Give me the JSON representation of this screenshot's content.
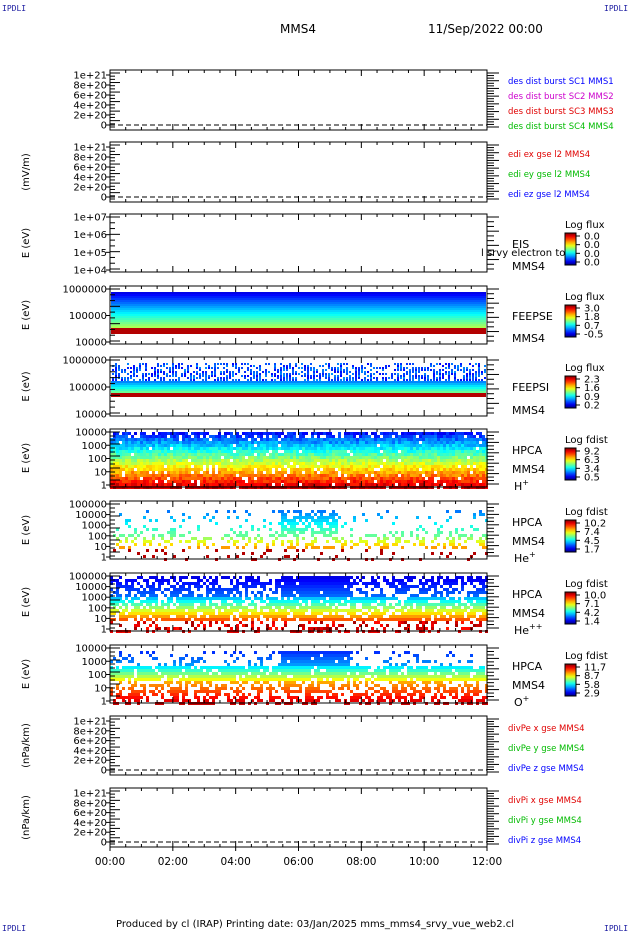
{
  "corners": {
    "top_left": "IPDLI",
    "top_right": "IPDLI",
    "bottom_left": "IPDLI",
    "bottom_right": "IPDLI"
  },
  "header": {
    "spacecraft": "MMS4",
    "date": "11/Sep/2022 00:00"
  },
  "footer": {
    "text": "Produced by cl (IRAP)   Printing date: 03/Jan/2025   mms_mms4_srvy_vue_web2.cl"
  },
  "x_axis": {
    "ticks": [
      "00:00",
      "02:00",
      "04:00",
      "06:00",
      "08:00",
      "10:00",
      "12:00"
    ]
  },
  "colors": {
    "des1": "#0000ff",
    "des2": "#cc00cc",
    "des3": "#e00000",
    "des4": "#00bb00"
  },
  "chart_data": [
    {
      "type": "line",
      "panel": "des-dist",
      "ylabel": "",
      "ytick_labels": [
        "1e+21",
        "8e+20",
        "6e+20",
        "4e+20",
        "2e+20",
        "0"
      ],
      "legend": [
        {
          "name": "des dist burst SC1 MMS1",
          "color": "#0000ff"
        },
        {
          "name": "des dist burst SC2 MMS2",
          "color": "#cc00cc"
        },
        {
          "name": "des dist burst SC3 MMS3",
          "color": "#e00000"
        },
        {
          "name": "des dist burst SC4 MMS4",
          "color": "#00bb00"
        }
      ]
    },
    {
      "type": "line",
      "panel": "edi-e",
      "ylabel": "(mV/m)",
      "ytick_labels": [
        "1e+21",
        "8e+20",
        "6e+20",
        "4e+20",
        "2e+20",
        "0"
      ],
      "legend": [
        {
          "name": "edi ex gse l2 MMS4",
          "color": "#e00000"
        },
        {
          "name": "edi ey gse l2 MMS4",
          "color": "#00bb00"
        },
        {
          "name": "edi ez gse l2 MMS4",
          "color": "#0000ff"
        }
      ]
    },
    {
      "type": "heatmap",
      "panel": "eis",
      "ylabel": "E (eV)",
      "ytick_labels": [
        "1e+07",
        "1e+06",
        "1e+05",
        "1e+04"
      ],
      "labels": [
        "EIS",
        "MMS4"
      ],
      "overlay_text": "l srvy electron to",
      "cbar_title": "Log flux",
      "cbar_ticks": [
        "0.0",
        "0.0",
        "0.0",
        "0.0"
      ]
    },
    {
      "type": "heatmap",
      "panel": "feepse",
      "ylabel": "E (eV)",
      "ytick_labels": [
        "1000000",
        "100000",
        "10000"
      ],
      "labels": [
        "FEEPSE",
        "MMS4"
      ],
      "cbar_title": "Log flux",
      "cbar_ticks": [
        "3.0",
        "1.8",
        "0.7",
        "-0.5"
      ]
    },
    {
      "type": "heatmap",
      "panel": "feepsi",
      "ylabel": "E (eV)",
      "ytick_labels": [
        "1000000",
        "100000",
        "10000"
      ],
      "labels": [
        "FEEPSI",
        "MMS4"
      ],
      "cbar_title": "Log flux",
      "cbar_ticks": [
        "2.3",
        "1.6",
        "0.9",
        "0.2"
      ]
    },
    {
      "type": "heatmap",
      "panel": "hpca-h",
      "ylabel": "E (eV)",
      "ytick_labels": [
        "10000",
        "1000",
        "100",
        "10",
        "1"
      ],
      "labels": [
        "HPCA",
        "MMS4"
      ],
      "species": "H",
      "species_sup": "+",
      "cbar_title": "Log fdist",
      "cbar_ticks": [
        "9.2",
        "6.3",
        "3.4",
        "0.5"
      ]
    },
    {
      "type": "heatmap",
      "panel": "hpca-he1",
      "ylabel": "E (eV)",
      "ytick_labels": [
        "100000",
        "10000",
        "1000",
        "100",
        "10",
        "1"
      ],
      "labels": [
        "HPCA",
        "MMS4"
      ],
      "species": "He",
      "species_sup": "+",
      "cbar_title": "Log fdist",
      "cbar_ticks": [
        "10.2",
        "7.4",
        "4.5",
        "1.7"
      ]
    },
    {
      "type": "heatmap",
      "panel": "hpca-he2",
      "ylabel": "E (eV)",
      "ytick_labels": [
        "100000",
        "10000",
        "1000",
        "100",
        "10",
        "1"
      ],
      "labels": [
        "HPCA",
        "MMS4"
      ],
      "species": "He",
      "species_sup": "++",
      "cbar_title": "Log fdist",
      "cbar_ticks": [
        "10.0",
        "7.1",
        "4.2",
        "1.4"
      ]
    },
    {
      "type": "heatmap",
      "panel": "hpca-o",
      "ylabel": "E (eV)",
      "ytick_labels": [
        "10000",
        "1000",
        "100",
        "10",
        "1"
      ],
      "labels": [
        "HPCA",
        "MMS4"
      ],
      "species": "O",
      "species_sup": "+",
      "cbar_title": "Log fdist",
      "cbar_ticks": [
        "11.7",
        "8.7",
        "5.8",
        "2.9"
      ]
    },
    {
      "type": "line",
      "panel": "divpe",
      "ylabel": "(nPa/km)",
      "ytick_labels": [
        "1e+21",
        "8e+20",
        "6e+20",
        "4e+20",
        "2e+20",
        "0"
      ],
      "legend": [
        {
          "name": "divPe x gse MMS4",
          "color": "#e00000"
        },
        {
          "name": "divPe y gse MMS4",
          "color": "#00bb00"
        },
        {
          "name": "divPe z gse MMS4",
          "color": "#0000ff"
        }
      ]
    },
    {
      "type": "line",
      "panel": "divpi",
      "ylabel": "(nPa/km)",
      "ytick_labels": [
        "1e+21",
        "8e+20",
        "6e+20",
        "4e+20",
        "2e+20",
        "0"
      ],
      "legend": [
        {
          "name": "divPi x gse MMS4",
          "color": "#e00000"
        },
        {
          "name": "divPi y gse MMS4",
          "color": "#00bb00"
        },
        {
          "name": "divPi z gse MMS4",
          "color": "#0000ff"
        }
      ]
    }
  ]
}
